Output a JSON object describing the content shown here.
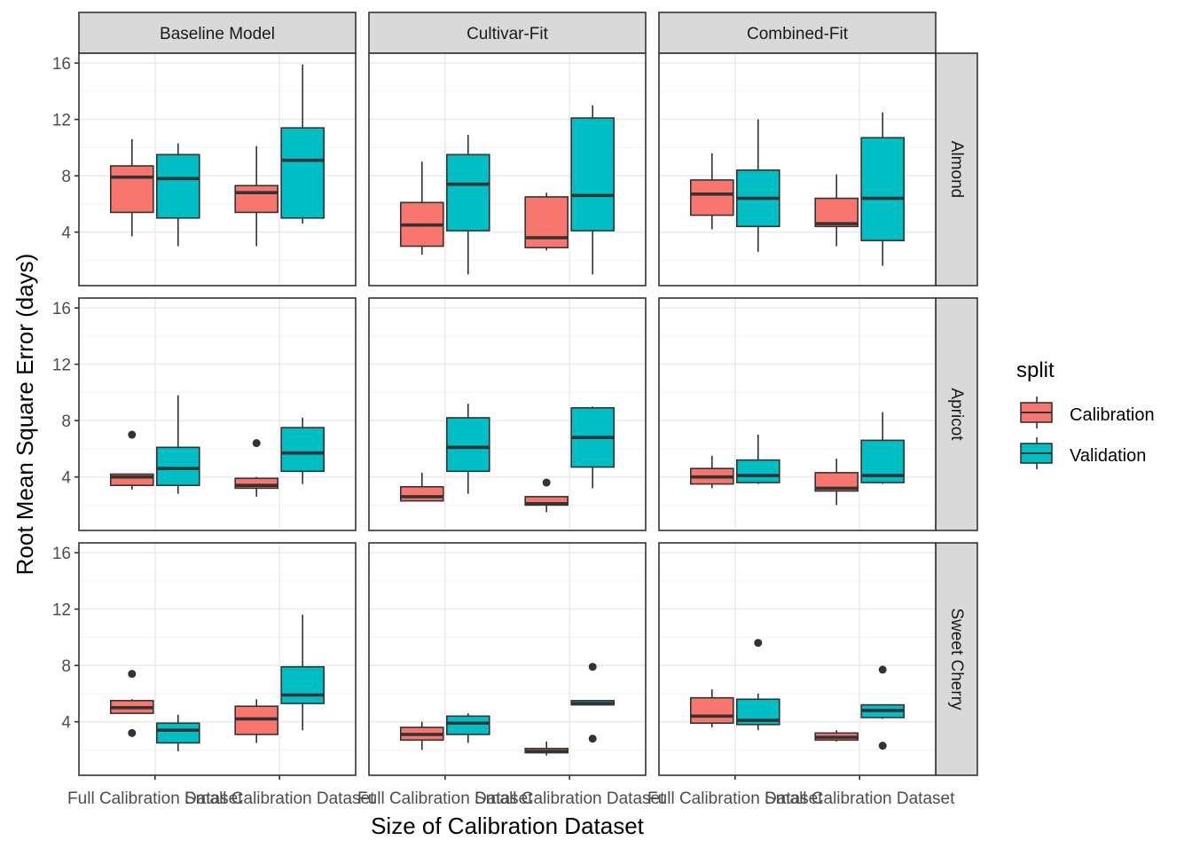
{
  "chart_data": {
    "type": "boxplot",
    "title": "",
    "xlabel": "Size of Calibration Dataset",
    "ylabel": "Root Mean Square Error (days)",
    "ylim": [
      0.2,
      16.7
    ],
    "yticks": [
      4,
      8,
      12,
      16
    ],
    "grid": true,
    "categories": [
      "Full Calibration Dataset",
      "Small Calibration Dataset"
    ],
    "facet_cols": [
      "Baseline Model",
      "Cultivar-Fit",
      "Combined-Fit"
    ],
    "facet_rows": [
      "Almond",
      "Apricot",
      "Sweet Cherry"
    ],
    "legend": {
      "title": "split",
      "position": "right",
      "entries": [
        {
          "name": "Calibration",
          "color": "#F8766D"
        },
        {
          "name": "Validation",
          "color": "#00BFC4"
        }
      ]
    },
    "panels": [
      {
        "row": "Almond",
        "col": "Baseline Model",
        "boxes": [
          {
            "category": "Full Calibration Dataset",
            "split": "Calibration",
            "low": 3.7,
            "q1": 5.4,
            "median": 7.9,
            "q3": 8.7,
            "high": 10.6,
            "outliers": []
          },
          {
            "category": "Full Calibration Dataset",
            "split": "Validation",
            "low": 3.0,
            "q1": 5.0,
            "median": 7.8,
            "q3": 9.5,
            "high": 10.3,
            "outliers": []
          },
          {
            "category": "Small Calibration Dataset",
            "split": "Calibration",
            "low": 3.0,
            "q1": 5.4,
            "median": 6.8,
            "q3": 7.3,
            "high": 10.1,
            "outliers": []
          },
          {
            "category": "Small Calibration Dataset",
            "split": "Validation",
            "low": 4.6,
            "q1": 5.0,
            "median": 9.1,
            "q3": 11.4,
            "high": 15.9,
            "outliers": []
          }
        ]
      },
      {
        "row": "Almond",
        "col": "Cultivar-Fit",
        "boxes": [
          {
            "category": "Full Calibration Dataset",
            "split": "Calibration",
            "low": 2.4,
            "q1": 3.0,
            "median": 4.5,
            "q3": 6.1,
            "high": 9.0,
            "outliers": []
          },
          {
            "category": "Full Calibration Dataset",
            "split": "Validation",
            "low": 1.0,
            "q1": 4.1,
            "median": 7.4,
            "q3": 9.5,
            "high": 10.9,
            "outliers": []
          },
          {
            "category": "Small Calibration Dataset",
            "split": "Calibration",
            "low": 2.7,
            "q1": 2.9,
            "median": 3.6,
            "q3": 6.5,
            "high": 6.8,
            "outliers": []
          },
          {
            "category": "Small Calibration Dataset",
            "split": "Validation",
            "low": 1.0,
            "q1": 4.1,
            "median": 6.6,
            "q3": 12.1,
            "high": 13.0,
            "outliers": []
          }
        ]
      },
      {
        "row": "Almond",
        "col": "Combined-Fit",
        "boxes": [
          {
            "category": "Full Calibration Dataset",
            "split": "Calibration",
            "low": 4.2,
            "q1": 5.2,
            "median": 6.7,
            "q3": 7.7,
            "high": 9.6,
            "outliers": []
          },
          {
            "category": "Full Calibration Dataset",
            "split": "Validation",
            "low": 2.6,
            "q1": 4.4,
            "median": 6.4,
            "q3": 8.4,
            "high": 12.0,
            "outliers": []
          },
          {
            "category": "Small Calibration Dataset",
            "split": "Calibration",
            "low": 3.0,
            "q1": 4.4,
            "median": 4.6,
            "q3": 6.4,
            "high": 8.1,
            "outliers": []
          },
          {
            "category": "Small Calibration Dataset",
            "split": "Validation",
            "low": 1.6,
            "q1": 3.4,
            "median": 6.4,
            "q3": 10.7,
            "high": 12.5,
            "outliers": []
          }
        ]
      },
      {
        "row": "Apricot",
        "col": "Baseline Model",
        "boxes": [
          {
            "category": "Full Calibration Dataset",
            "split": "Calibration",
            "low": 3.1,
            "q1": 3.4,
            "median": 4.0,
            "q3": 4.2,
            "high": 4.2,
            "outliers": [
              7.0
            ]
          },
          {
            "category": "Full Calibration Dataset",
            "split": "Validation",
            "low": 2.8,
            "q1": 3.4,
            "median": 4.6,
            "q3": 6.1,
            "high": 9.8,
            "outliers": []
          },
          {
            "category": "Small Calibration Dataset",
            "split": "Calibration",
            "low": 2.6,
            "q1": 3.2,
            "median": 3.4,
            "q3": 3.9,
            "high": 4.0,
            "outliers": [
              6.4
            ]
          },
          {
            "category": "Small Calibration Dataset",
            "split": "Validation",
            "low": 3.5,
            "q1": 4.4,
            "median": 5.7,
            "q3": 7.5,
            "high": 8.2,
            "outliers": []
          }
        ]
      },
      {
        "row": "Apricot",
        "col": "Cultivar-Fit",
        "boxes": [
          {
            "category": "Full Calibration Dataset",
            "split": "Calibration",
            "low": 2.3,
            "q1": 2.3,
            "median": 2.6,
            "q3": 3.3,
            "high": 4.3,
            "outliers": []
          },
          {
            "category": "Full Calibration Dataset",
            "split": "Validation",
            "low": 2.8,
            "q1": 4.4,
            "median": 6.1,
            "q3": 8.2,
            "high": 9.2,
            "outliers": []
          },
          {
            "category": "Small Calibration Dataset",
            "split": "Calibration",
            "low": 1.5,
            "q1": 2.0,
            "median": 2.1,
            "q3": 2.6,
            "high": 2.6,
            "outliers": [
              3.6
            ]
          },
          {
            "category": "Small Calibration Dataset",
            "split": "Validation",
            "low": 3.2,
            "q1": 4.7,
            "median": 6.8,
            "q3": 8.9,
            "high": 9.0,
            "outliers": []
          }
        ]
      },
      {
        "row": "Apricot",
        "col": "Combined-Fit",
        "boxes": [
          {
            "category": "Full Calibration Dataset",
            "split": "Calibration",
            "low": 3.2,
            "q1": 3.5,
            "median": 4.0,
            "q3": 4.6,
            "high": 5.5,
            "outliers": []
          },
          {
            "category": "Full Calibration Dataset",
            "split": "Validation",
            "low": 3.5,
            "q1": 3.6,
            "median": 4.1,
            "q3": 5.2,
            "high": 7.0,
            "outliers": []
          },
          {
            "category": "Small Calibration Dataset",
            "split": "Calibration",
            "low": 2.0,
            "q1": 3.0,
            "median": 3.2,
            "q3": 4.3,
            "high": 5.3,
            "outliers": []
          },
          {
            "category": "Small Calibration Dataset",
            "split": "Validation",
            "low": 3.5,
            "q1": 3.6,
            "median": 4.1,
            "q3": 6.6,
            "high": 8.6,
            "outliers": []
          }
        ]
      },
      {
        "row": "Sweet Cherry",
        "col": "Baseline Model",
        "boxes": [
          {
            "category": "Full Calibration Dataset",
            "split": "Calibration",
            "low": 4.6,
            "q1": 4.6,
            "median": 5.0,
            "q3": 5.5,
            "high": 5.6,
            "outliers": [
              7.4,
              3.2
            ]
          },
          {
            "category": "Full Calibration Dataset",
            "split": "Validation",
            "low": 1.9,
            "q1": 2.5,
            "median": 3.4,
            "q3": 3.9,
            "high": 4.5,
            "outliers": []
          },
          {
            "category": "Small Calibration Dataset",
            "split": "Calibration",
            "low": 2.5,
            "q1": 3.1,
            "median": 4.2,
            "q3": 5.1,
            "high": 5.6,
            "outliers": []
          },
          {
            "category": "Small Calibration Dataset",
            "split": "Validation",
            "low": 3.4,
            "q1": 5.3,
            "median": 5.9,
            "q3": 7.9,
            "high": 11.6,
            "outliers": []
          }
        ]
      },
      {
        "row": "Sweet Cherry",
        "col": "Cultivar-Fit",
        "boxes": [
          {
            "category": "Full Calibration Dataset",
            "split": "Calibration",
            "low": 2.0,
            "q1": 2.7,
            "median": 3.1,
            "q3": 3.6,
            "high": 4.0,
            "outliers": []
          },
          {
            "category": "Full Calibration Dataset",
            "split": "Validation",
            "low": 2.5,
            "q1": 3.1,
            "median": 3.9,
            "q3": 4.4,
            "high": 4.6,
            "outliers": []
          },
          {
            "category": "Small Calibration Dataset",
            "split": "Calibration",
            "low": 1.6,
            "q1": 1.8,
            "median": 1.9,
            "q3": 2.1,
            "high": 2.6,
            "outliers": []
          },
          {
            "category": "Small Calibration Dataset",
            "split": "Validation",
            "low": 5.2,
            "q1": 5.2,
            "median": 5.3,
            "q3": 5.5,
            "high": 5.5,
            "outliers": [
              7.9,
              2.8
            ]
          }
        ]
      },
      {
        "row": "Sweet Cherry",
        "col": "Combined-Fit",
        "boxes": [
          {
            "category": "Full Calibration Dataset",
            "split": "Calibration",
            "low": 3.6,
            "q1": 3.9,
            "median": 4.4,
            "q3": 5.7,
            "high": 6.3,
            "outliers": []
          },
          {
            "category": "Full Calibration Dataset",
            "split": "Validation",
            "low": 3.4,
            "q1": 3.8,
            "median": 4.1,
            "q3": 5.6,
            "high": 6.0,
            "outliers": [
              9.6
            ]
          },
          {
            "category": "Small Calibration Dataset",
            "split": "Calibration",
            "low": 2.6,
            "q1": 2.7,
            "median": 2.9,
            "q3": 3.2,
            "high": 3.4,
            "outliers": []
          },
          {
            "category": "Small Calibration Dataset",
            "split": "Validation",
            "low": 4.2,
            "q1": 4.3,
            "median": 4.8,
            "q3": 5.2,
            "high": 5.2,
            "outliers": [
              7.7,
              2.3
            ]
          }
        ]
      }
    ]
  }
}
